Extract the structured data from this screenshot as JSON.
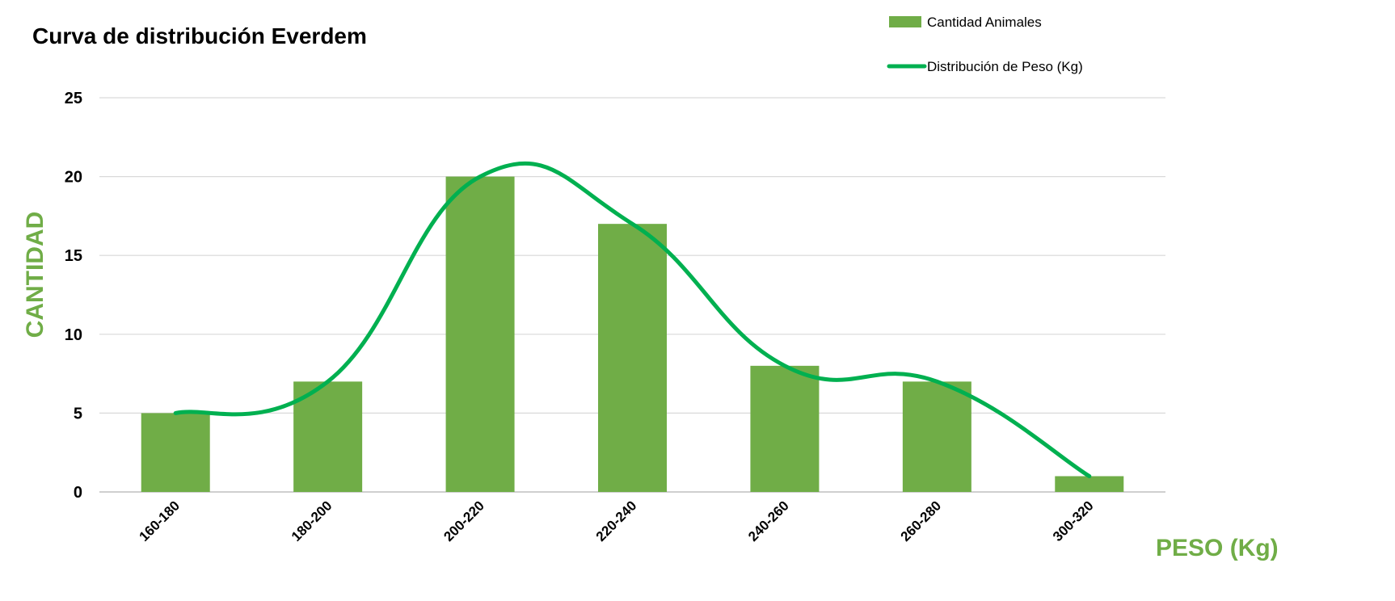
{
  "chart_data": {
    "type": "bar",
    "title": "Curva de distribución Everdem",
    "xlabel": "PESO (Kg)",
    "ylabel": "CANTIDAD",
    "categories": [
      "160-180",
      "180-200",
      "200-220",
      "220-240",
      "240-260",
      "260-280",
      "300-320"
    ],
    "series": [
      {
        "name": "Cantidad Animales",
        "type": "bar",
        "values": [
          5,
          7,
          20,
          17,
          8,
          7,
          1
        ],
        "color": "#70AD47"
      },
      {
        "name": "Distribución de Peso (Kg)",
        "type": "line",
        "smooth": true,
        "values": [
          5,
          7,
          20,
          17,
          8,
          7,
          1
        ],
        "color": "#00B050"
      }
    ],
    "ylim": [
      0,
      25
    ],
    "yticks": [
      "0",
      "5",
      "10",
      "15",
      "20",
      "25"
    ],
    "grid": true,
    "legend": "top-right",
    "axis_title_color": "#70AD47"
  }
}
